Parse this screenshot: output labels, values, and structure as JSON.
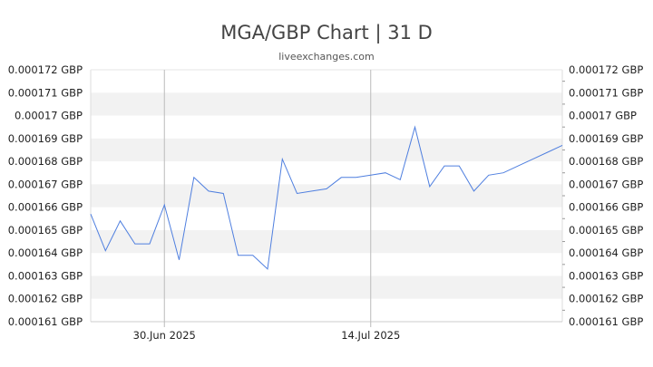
{
  "header": {
    "title": "MGA/GBP Chart | 31 D",
    "subtitle": "liveexchanges.com"
  },
  "chart_data": {
    "type": "line",
    "title": "MGA/GBP Chart | 31 D",
    "subtitle": "liveexchanges.com",
    "xlabel": "",
    "ylabel": "",
    "ylim": [
      0.000161,
      0.000172
    ],
    "y_ticks": [
      "0.000172 GBP",
      "0.000171 GBP",
      "0.00017 GBP",
      "0.000169 GBP",
      "0.000168 GBP",
      "0.000167 GBP",
      "0.000166 GBP",
      "0.000165 GBP",
      "0.000164 GBP",
      "0.000163 GBP",
      "0.000162 GBP",
      "0.000161 GBP"
    ],
    "y_tick_values": [
      0.000172,
      0.000171,
      0.00017,
      0.000169,
      0.000168,
      0.000167,
      0.000166,
      0.000165,
      0.000164,
      0.000163,
      0.000162,
      0.000161
    ],
    "x_ticks": [
      {
        "label": "30.Jun 2025",
        "date": "2025-06-30"
      },
      {
        "label": "14.Jul 2025",
        "date": "2025-07-14"
      }
    ],
    "grid": "horizontal alternating bands",
    "line_color": "#4f7fdf",
    "series": [
      {
        "points": [
          {
            "date": "2025-06-25",
            "value": 0.0001657
          },
          {
            "date": "2025-06-26",
            "value": 0.0001641
          },
          {
            "date": "2025-06-27",
            "value": 0.0001654
          },
          {
            "date": "2025-06-28",
            "value": 0.0001644
          },
          {
            "date": "2025-06-29",
            "value": 0.0001644
          },
          {
            "date": "2025-06-30",
            "value": 0.0001661
          },
          {
            "date": "2025-07-01",
            "value": 0.0001637
          },
          {
            "date": "2025-07-02",
            "value": 0.0001673
          },
          {
            "date": "2025-07-03",
            "value": 0.0001667
          },
          {
            "date": "2025-07-04",
            "value": 0.0001666
          },
          {
            "date": "2025-07-05",
            "value": 0.0001639
          },
          {
            "date": "2025-07-06",
            "value": 0.0001639
          },
          {
            "date": "2025-07-07",
            "value": 0.0001633
          },
          {
            "date": "2025-07-08",
            "value": 0.0001681
          },
          {
            "date": "2025-07-09",
            "value": 0.0001666
          },
          {
            "date": "2025-07-10",
            "value": 0.0001667
          },
          {
            "date": "2025-07-11",
            "value": 0.0001668
          },
          {
            "date": "2025-07-12",
            "value": 0.0001673
          },
          {
            "date": "2025-07-13",
            "value": 0.0001673
          },
          {
            "date": "2025-07-14",
            "value": 0.0001674
          },
          {
            "date": "2025-07-15",
            "value": 0.0001675
          },
          {
            "date": "2025-07-16",
            "value": 0.0001672
          },
          {
            "date": "2025-07-17",
            "value": 0.0001695
          },
          {
            "date": "2025-07-18",
            "value": 0.0001669
          },
          {
            "date": "2025-07-19",
            "value": 0.0001678
          },
          {
            "date": "2025-07-20",
            "value": 0.0001678
          },
          {
            "date": "2025-07-21",
            "value": 0.0001667
          },
          {
            "date": "2025-07-22",
            "value": 0.0001674
          },
          {
            "date": "2025-07-23",
            "value": 0.0001675
          },
          {
            "date": "2025-07-24",
            "value": 0.0001678
          },
          {
            "date": "2025-07-25",
            "value": 0.0001681
          },
          {
            "date": "2025-07-26",
            "value": 0.0001684
          },
          {
            "date": "2025-07-27",
            "value": 0.0001687
          }
        ]
      }
    ]
  }
}
